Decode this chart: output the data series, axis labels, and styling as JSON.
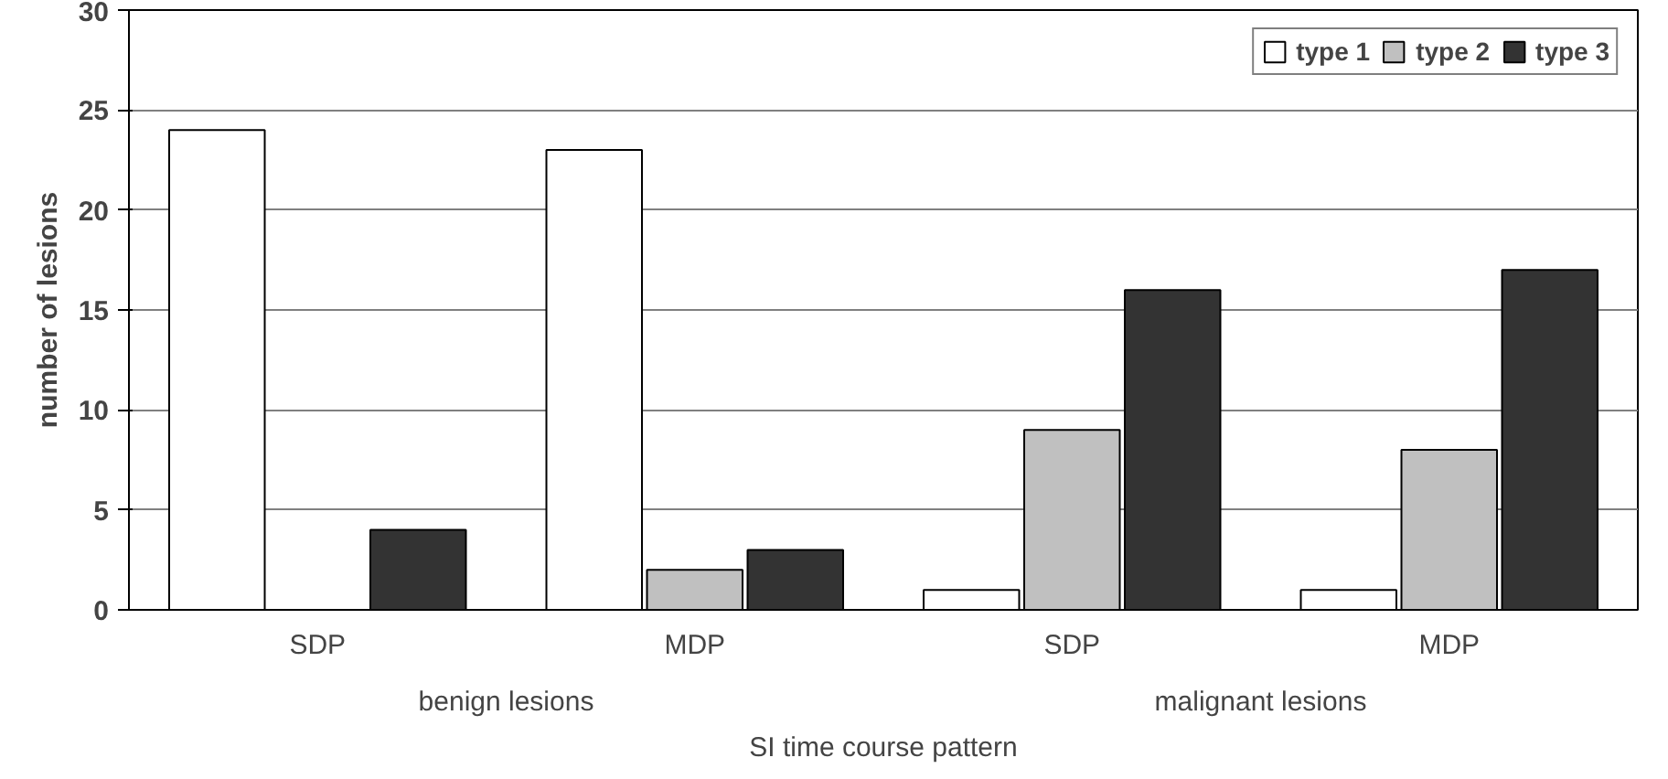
{
  "chart_data": {
    "type": "bar",
    "categories": [
      "SDP",
      "MDP",
      "SDP",
      "MDP"
    ],
    "series": [
      {
        "name": "type 1",
        "color": "#ffffff",
        "values": [
          24,
          23,
          1,
          1
        ]
      },
      {
        "name": "type 2",
        "color": "#c0c0c0",
        "values": [
          0,
          2,
          9,
          8
        ]
      },
      {
        "name": "type 3",
        "color": "#333333",
        "values": [
          4,
          3,
          16,
          17
        ]
      }
    ],
    "ylabel": "number of lesions",
    "xlabel": "SI time course pattern",
    "annotations": [
      "benign lesions",
      "malignant lesions"
    ],
    "ylim": [
      0,
      30
    ],
    "yticks": [
      0,
      5,
      10,
      15,
      20,
      25,
      30
    ],
    "grid": "y",
    "legend": "top right"
  }
}
